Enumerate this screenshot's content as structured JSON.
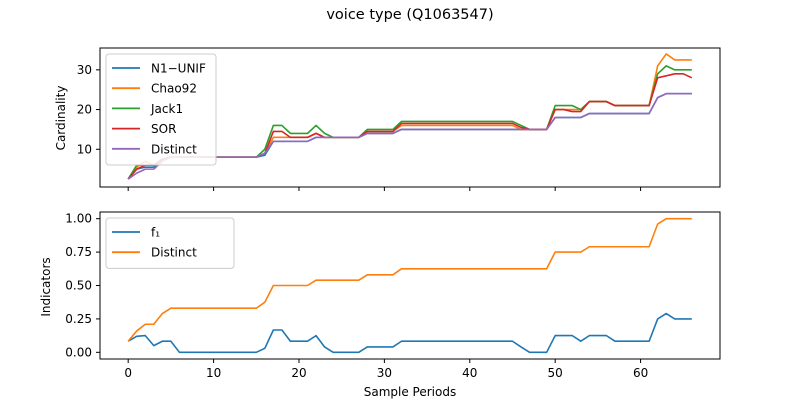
{
  "figure": {
    "title": "voice type (Q1063547)"
  },
  "chart_data": [
    {
      "type": "line",
      "ylabel": "Cardinality",
      "xlabel": "",
      "xlim": [
        -3.3,
        69.3
      ],
      "ylim": [
        0.5,
        35.5
      ],
      "xticks": [
        0,
        10,
        20,
        30,
        40,
        50,
        60
      ],
      "yticks": [
        10,
        20,
        30
      ],
      "show_x_tick_labels": false,
      "grid": false,
      "legend_position": "upper-left",
      "series": [
        {
          "name": "N1−UNIF",
          "color": "#1f77b4",
          "values": [
            2.5,
            5,
            5.5,
            5.5,
            7.5,
            8,
            8,
            8,
            8,
            8,
            8,
            8,
            8,
            8,
            8,
            8,
            8.5,
            12,
            12,
            12,
            12,
            12,
            13,
            13,
            13,
            13,
            13,
            13,
            14,
            14,
            14,
            14,
            15,
            15,
            15,
            15,
            15,
            15,
            15,
            15,
            15,
            15,
            15,
            15,
            15,
            15,
            15,
            15,
            15,
            15,
            18,
            18,
            18,
            18,
            19,
            19,
            19,
            19,
            19,
            19,
            19,
            19,
            23,
            24,
            24,
            24,
            24
          ]
        },
        {
          "name": "Chao92",
          "color": "#ff7f0e",
          "values": [
            2.5,
            5.5,
            7,
            6,
            7.5,
            8,
            8,
            8,
            8,
            8,
            8,
            8,
            8,
            8,
            8,
            8,
            9,
            13,
            13,
            13,
            13,
            13,
            14,
            13,
            13,
            13,
            13,
            13,
            14.5,
            14.5,
            14.5,
            14.5,
            16,
            16,
            16,
            16,
            16,
            16,
            16,
            16,
            16,
            16,
            16,
            16,
            16,
            16,
            15,
            15,
            15,
            15,
            20,
            20,
            20,
            20,
            22,
            22,
            22,
            21,
            21,
            21,
            21,
            21,
            31,
            34,
            32.5,
            32.5,
            32.5
          ]
        },
        {
          "name": "Jack1",
          "color": "#2ca02c",
          "values": [
            2.5,
            6,
            6,
            6,
            7.5,
            8,
            8,
            8,
            8,
            8,
            8,
            8,
            8,
            8,
            8,
            8,
            10,
            16,
            16,
            14,
            14,
            14,
            16,
            14,
            13,
            13,
            13,
            13,
            15,
            15,
            15,
            15,
            17,
            17,
            17,
            17,
            17,
            17,
            17,
            17,
            17,
            17,
            17,
            17,
            17,
            17,
            16,
            15,
            15,
            15,
            21,
            21,
            21,
            20,
            22,
            22,
            22,
            21,
            21,
            21,
            21,
            21,
            29,
            31,
            30,
            30,
            30
          ]
        },
        {
          "name": "SOR",
          "color": "#d62728",
          "values": [
            2.5,
            5,
            6,
            6,
            7.5,
            8,
            8,
            8,
            8,
            8,
            8,
            8,
            8,
            8,
            8,
            8,
            9,
            14.5,
            14.5,
            13,
            13,
            13,
            14,
            13,
            13,
            13,
            13,
            13,
            14.5,
            14.5,
            14.5,
            14.5,
            16.5,
            16.5,
            16.5,
            16.5,
            16.5,
            16.5,
            16.5,
            16.5,
            16.5,
            16.5,
            16.5,
            16.5,
            16.5,
            16.5,
            15.5,
            15,
            15,
            15,
            20,
            20,
            19.5,
            19.5,
            22,
            22,
            22,
            21,
            21,
            21,
            21,
            21,
            28,
            28.5,
            29,
            29,
            28
          ]
        },
        {
          "name": "Distinct",
          "color": "#9467bd",
          "values": [
            2.5,
            4,
            5,
            5,
            7,
            8,
            8,
            8,
            8,
            8,
            8,
            8,
            8,
            8,
            8,
            8,
            9,
            12,
            12,
            12,
            12,
            12,
            13,
            13,
            13,
            13,
            13,
            13,
            14,
            14,
            14,
            14,
            15,
            15,
            15,
            15,
            15,
            15,
            15,
            15,
            15,
            15,
            15,
            15,
            15,
            15,
            15,
            15,
            15,
            15,
            18,
            18,
            18,
            18,
            19,
            19,
            19,
            19,
            19,
            19,
            19,
            19,
            23,
            24,
            24,
            24,
            24
          ]
        }
      ]
    },
    {
      "type": "line",
      "ylabel": "Indicators",
      "xlabel": "Sample Periods",
      "xlim": [
        -3.3,
        69.3
      ],
      "ylim": [
        -0.05,
        1.05
      ],
      "xticks": [
        0,
        10,
        20,
        30,
        40,
        50,
        60
      ],
      "yticks": [
        0.0,
        0.25,
        0.5,
        0.75,
        1.0
      ],
      "ytick_labels": [
        "0.00",
        "0.25",
        "0.50",
        "0.75",
        "1.00"
      ],
      "show_x_tick_labels": true,
      "grid": false,
      "legend_position": "upper-left",
      "series": [
        {
          "name": "f₁",
          "color": "#1f77b4",
          "values": [
            0.083,
            0.12,
            0.125,
            0.05,
            0.083,
            0.083,
            0,
            0,
            0,
            0,
            0,
            0,
            0,
            0,
            0,
            0,
            0.03,
            0.167,
            0.167,
            0.083,
            0.083,
            0.083,
            0.125,
            0.04,
            0,
            0,
            0,
            0,
            0.04,
            0.04,
            0.04,
            0.04,
            0.083,
            0.083,
            0.083,
            0.083,
            0.083,
            0.083,
            0.083,
            0.083,
            0.083,
            0.083,
            0.083,
            0.083,
            0.083,
            0.083,
            0.04,
            0,
            0,
            0,
            0.125,
            0.125,
            0.125,
            0.083,
            0.125,
            0.125,
            0.125,
            0.083,
            0.083,
            0.083,
            0.083,
            0.083,
            0.25,
            0.29,
            0.25,
            0.25,
            0.25
          ]
        },
        {
          "name": "Distinct",
          "color": "#ff7f0e",
          "values": [
            0.083,
            0.16,
            0.21,
            0.21,
            0.29,
            0.33,
            0.33,
            0.33,
            0.33,
            0.33,
            0.33,
            0.33,
            0.33,
            0.33,
            0.33,
            0.33,
            0.375,
            0.5,
            0.5,
            0.5,
            0.5,
            0.5,
            0.54,
            0.54,
            0.54,
            0.54,
            0.54,
            0.54,
            0.58,
            0.58,
            0.58,
            0.58,
            0.625,
            0.625,
            0.625,
            0.625,
            0.625,
            0.625,
            0.625,
            0.625,
            0.625,
            0.625,
            0.625,
            0.625,
            0.625,
            0.625,
            0.625,
            0.625,
            0.625,
            0.625,
            0.75,
            0.75,
            0.75,
            0.75,
            0.79,
            0.79,
            0.79,
            0.79,
            0.79,
            0.79,
            0.79,
            0.79,
            0.96,
            1.0,
            1.0,
            1.0,
            1.0
          ]
        }
      ]
    }
  ]
}
